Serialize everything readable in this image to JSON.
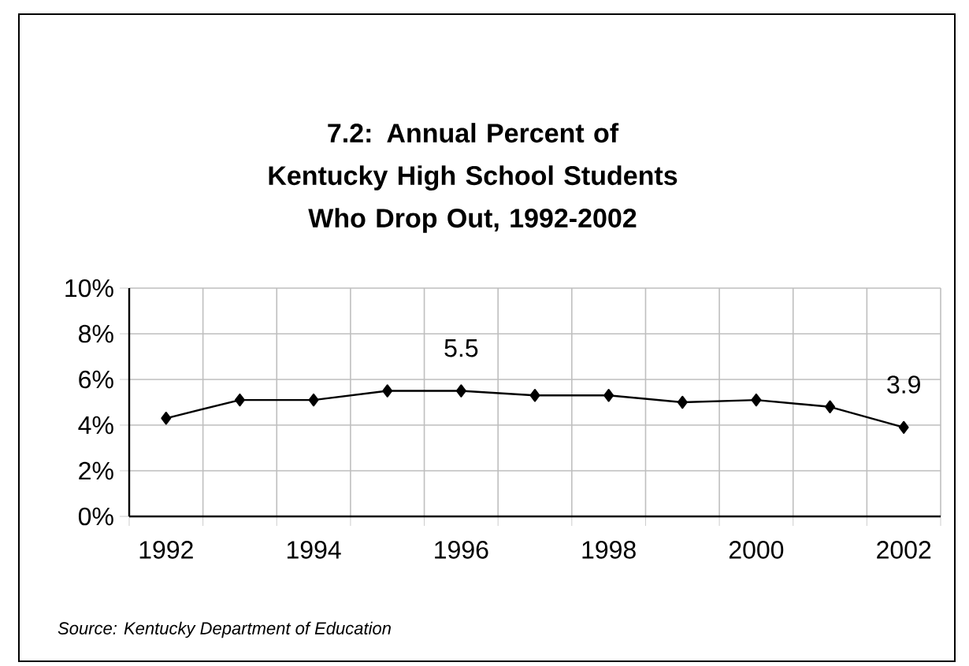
{
  "chart_data": {
    "type": "line",
    "title": "7.2: Annual Percent of Kentucky High School Students Who Drop Out, 1992-2002",
    "categories": [
      "1992",
      null,
      "1994",
      null,
      "1996",
      null,
      "1998",
      null,
      "2000",
      null,
      "2002"
    ],
    "values": [
      4.3,
      5.1,
      5.1,
      5.5,
      5.5,
      5.3,
      5.3,
      5.0,
      5.1,
      4.8,
      3.9
    ],
    "value_labels": [
      null,
      null,
      null,
      null,
      "5.5",
      null,
      null,
      null,
      null,
      null,
      "3.9"
    ],
    "color": "#000000",
    "marker": "diamond",
    "ylim": [
      0,
      10
    ],
    "yticks": [
      {
        "value": 0,
        "label": "0%"
      },
      {
        "value": 2,
        "label": "2%"
      },
      {
        "value": 4,
        "label": "4%"
      },
      {
        "value": 6,
        "label": "6%"
      },
      {
        "value": 8,
        "label": "8%"
      },
      {
        "value": 10,
        "label": "10%"
      }
    ],
    "grid": true,
    "annotations": [
      "*Source: Kentucky Department of Education*"
    ]
  }
}
